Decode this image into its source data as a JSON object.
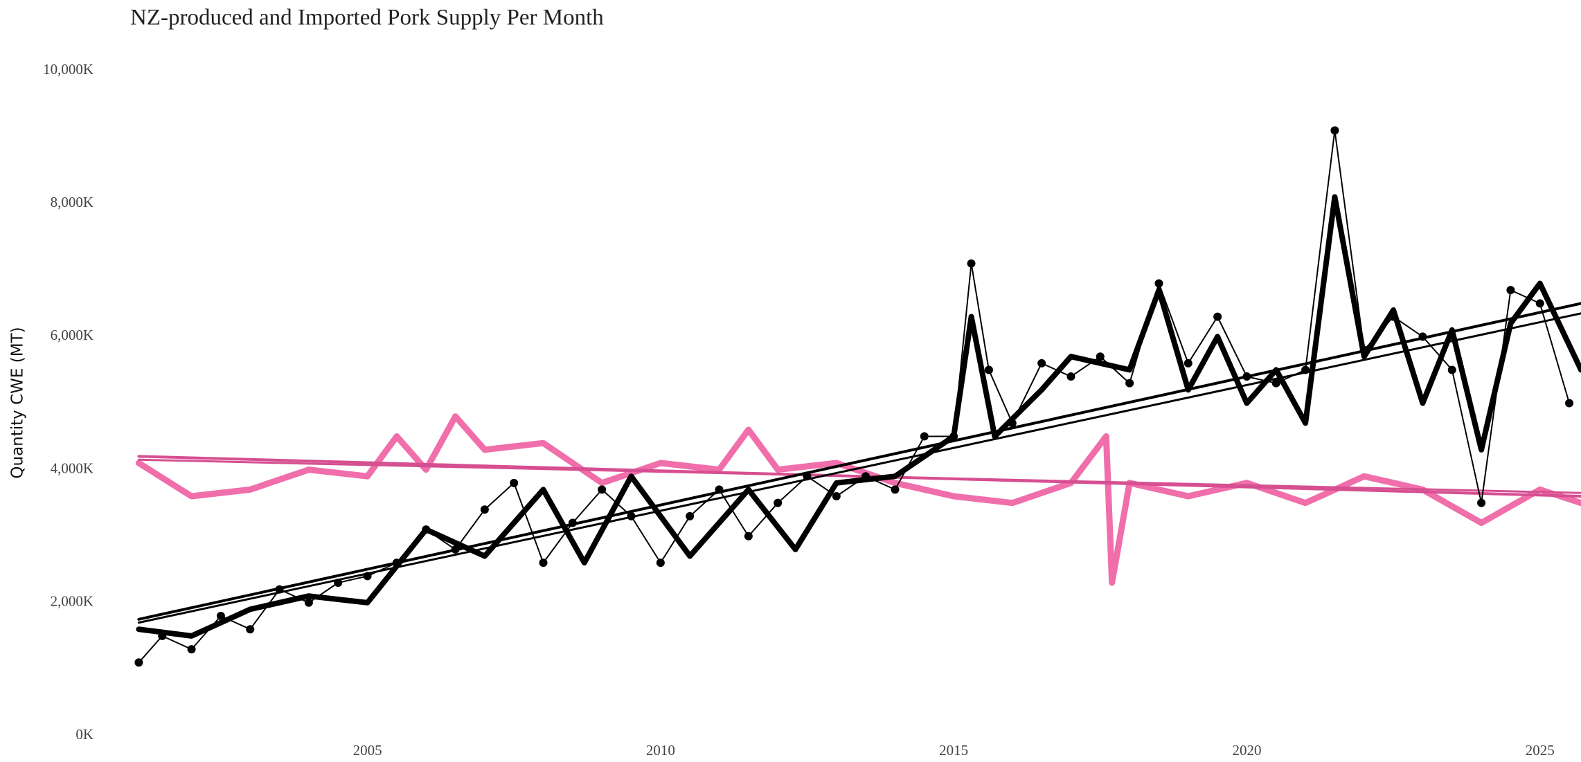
{
  "chart_data": {
    "type": "line",
    "title": "NZ-produced and Imported Pork Supply Per Month",
    "y_label": "Quantity CWE (MT)",
    "xlim": [
      2000.8,
      2025.7
    ],
    "xticks": [
      2005,
      2010,
      2015,
      2020,
      2025
    ],
    "ylim": [
      0,
      10000
    ],
    "yticks": [
      {
        "value": 0,
        "label": "0K"
      },
      {
        "value": 2000,
        "label": "2,000K"
      },
      {
        "value": 4000,
        "label": "4,000K"
      },
      {
        "value": 6000,
        "label": "6,000K"
      },
      {
        "value": 8000,
        "label": "8,000K"
      },
      {
        "value": 10000,
        "label": "10,000K"
      }
    ],
    "grid": false,
    "series": [
      {
        "color": "#f06eaa",
        "style": "line",
        "width": 9,
        "x": [
          2001.1,
          2002,
          2003,
          2004,
          2005,
          2005.5,
          2006,
          2006.5,
          2007,
          2008,
          2009,
          2010,
          2011,
          2011.5,
          2012,
          2013,
          2014,
          2015,
          2016,
          2017,
          2017.6,
          2017.7,
          2018,
          2019,
          2020,
          2021,
          2022,
          2023,
          2024,
          2025,
          2025.7
        ],
        "values": [
          4100,
          3600,
          3700,
          4000,
          3900,
          4500,
          4000,
          4800,
          4300,
          4400,
          3800,
          4100,
          4000,
          4600,
          4000,
          4100,
          3800,
          3600,
          3500,
          3800,
          4500,
          2300,
          3800,
          3600,
          3800,
          3500,
          3900,
          3700,
          3200,
          3700,
          3500
        ]
      },
      {
        "color": "#d64f91",
        "style": "line",
        "width": 4,
        "x": [
          2001.1,
          2025.7
        ],
        "values": [
          4200,
          3600
        ]
      },
      {
        "color": "#d64f91",
        "style": "line",
        "width": 3,
        "x": [
          2001.1,
          2025.7
        ],
        "values": [
          4150,
          3650
        ]
      },
      {
        "color": "#000000",
        "style": "line-points",
        "width": 2,
        "x": [
          2001.1,
          2001.5,
          2002,
          2002.5,
          2003,
          2003.5,
          2004,
          2004.5,
          2005,
          2005.5,
          2006,
          2006.5,
          2007,
          2007.5,
          2008,
          2008.5,
          2009,
          2009.5,
          2010,
          2010.5,
          2011,
          2011.5,
          2012,
          2012.5,
          2013,
          2013.5,
          2014,
          2014.5,
          2015,
          2015.3,
          2015.6,
          2016,
          2016.5,
          2017,
          2017.5,
          2018,
          2018.5,
          2019,
          2019.5,
          2020,
          2020.5,
          2021,
          2021.5,
          2022,
          2022.5,
          2023,
          2023.5,
          2024,
          2024.5,
          2025,
          2025.5
        ],
        "values": [
          1100,
          1500,
          1300,
          1800,
          1600,
          2200,
          2000,
          2300,
          2400,
          2600,
          3100,
          2800,
          3400,
          3800,
          2600,
          3200,
          3700,
          3300,
          2600,
          3300,
          3700,
          3000,
          3500,
          3900,
          3600,
          3900,
          3700,
          4500,
          4500,
          7100,
          5500,
          4700,
          5600,
          5400,
          5700,
          5300,
          6800,
          5600,
          6300,
          5400,
          5300,
          5500,
          9100,
          5800,
          6300,
          6000,
          5500,
          3500,
          6700,
          6500,
          5000
        ]
      },
      {
        "color": "#000000",
        "style": "line",
        "width": 8,
        "x": [
          2001.1,
          2002,
          2003,
          2004,
          2005,
          2006,
          2007,
          2008,
          2008.7,
          2009.5,
          2010.5,
          2011.5,
          2012.3,
          2013,
          2014,
          2015,
          2015.3,
          2015.7,
          2016.5,
          2017,
          2018,
          2018.5,
          2019,
          2019.5,
          2020,
          2020.5,
          2021,
          2021.5,
          2022,
          2022.5,
          2023,
          2023.5,
          2024,
          2024.5,
          2025,
          2025.7
        ],
        "values": [
          1600,
          1500,
          1900,
          2100,
          2000,
          3100,
          2700,
          3700,
          2600,
          3900,
          2700,
          3700,
          2800,
          3800,
          3900,
          4500,
          6300,
          4500,
          5200,
          5700,
          5500,
          6700,
          5200,
          6000,
          5000,
          5500,
          4700,
          8100,
          5700,
          6400,
          5000,
          6100,
          4300,
          6200,
          6800,
          5500
        ]
      },
      {
        "color": "#000000",
        "style": "line",
        "width": 4,
        "x": [
          2001.1,
          2025.7
        ],
        "values": [
          1750,
          6500
        ]
      },
      {
        "color": "#000000",
        "style": "line",
        "width": 3,
        "x": [
          2001.1,
          2025.7
        ],
        "values": [
          1700,
          6350
        ]
      }
    ]
  }
}
